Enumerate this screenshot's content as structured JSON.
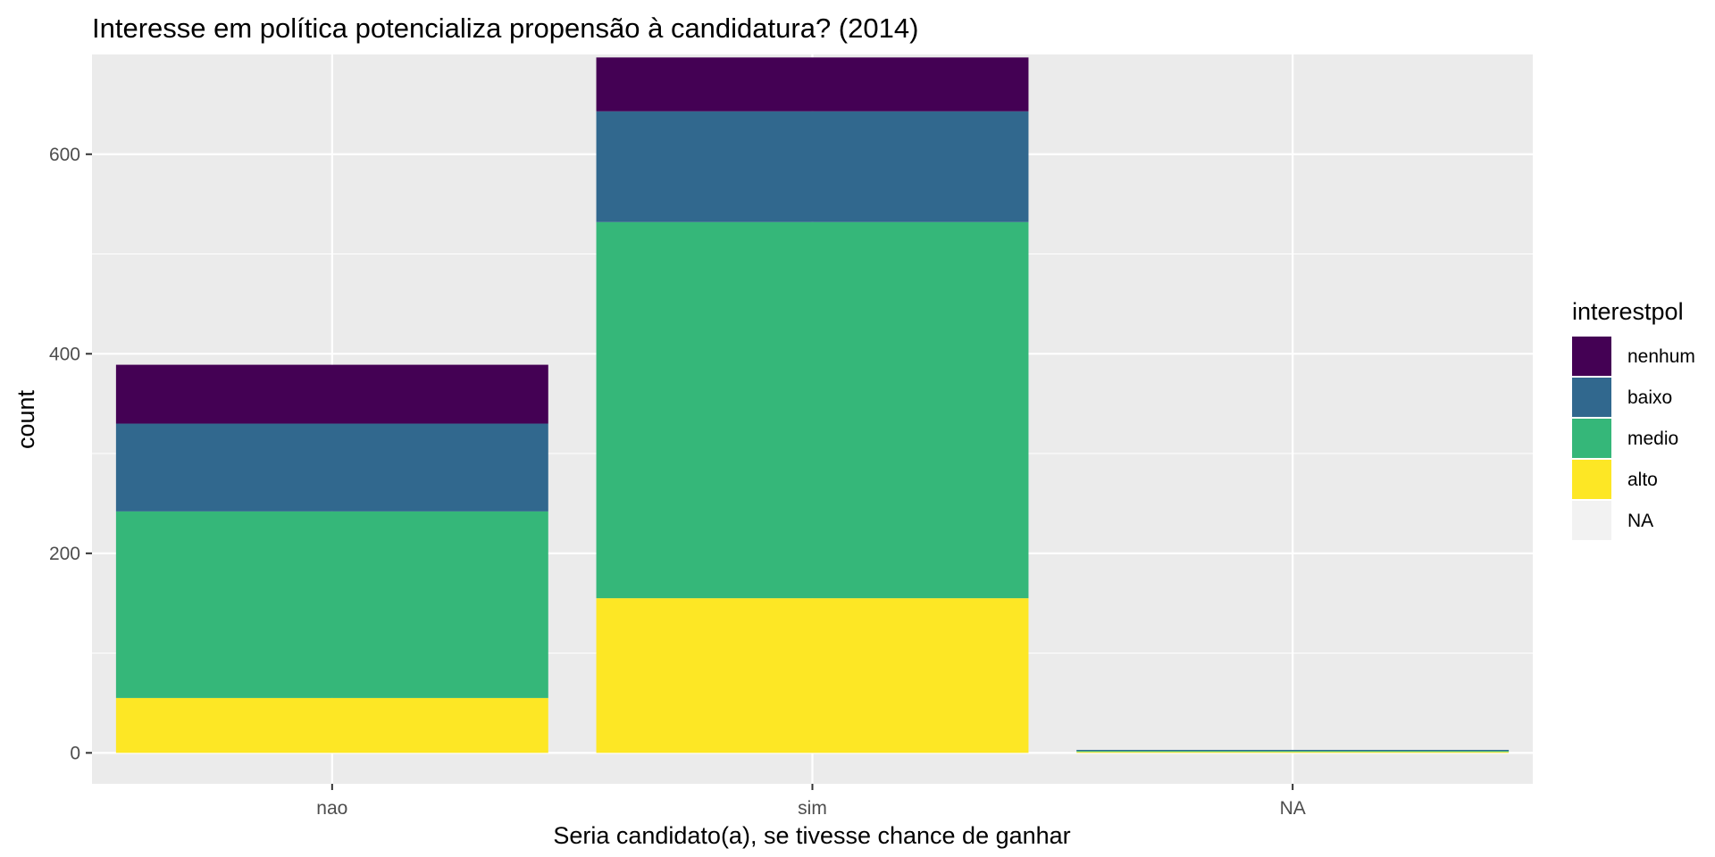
{
  "chart_data": {
    "type": "bar",
    "stacked": true,
    "title": "Interesse em política potencializa propensão à candidatura? (2014)",
    "xlabel": "Seria candidato(a), se tivesse chance de ganhar",
    "ylabel": "count",
    "categories": [
      "nao",
      "sim",
      "NA"
    ],
    "ylim": [
      -31,
      700
    ],
    "yticks": [
      0,
      200,
      400,
      600
    ],
    "grid": true,
    "legend": {
      "title": "interestpol",
      "position": "right"
    },
    "series": [
      {
        "name": "alto",
        "color": "#FDE725",
        "values": [
          55,
          155,
          1
        ]
      },
      {
        "name": "medio",
        "color": "#35B779",
        "values": [
          187,
          377,
          1
        ]
      },
      {
        "name": "baixo",
        "color": "#31688E",
        "values": [
          88,
          111,
          1
        ]
      },
      {
        "name": "nenhum",
        "color": "#440154",
        "values": [
          59,
          54,
          0
        ]
      },
      {
        "name": "NA",
        "color": "#F2F2F2",
        "values": [
          0,
          0,
          0
        ]
      }
    ],
    "legend_order": [
      "nenhum",
      "baixo",
      "medio",
      "alto",
      "NA"
    ]
  }
}
